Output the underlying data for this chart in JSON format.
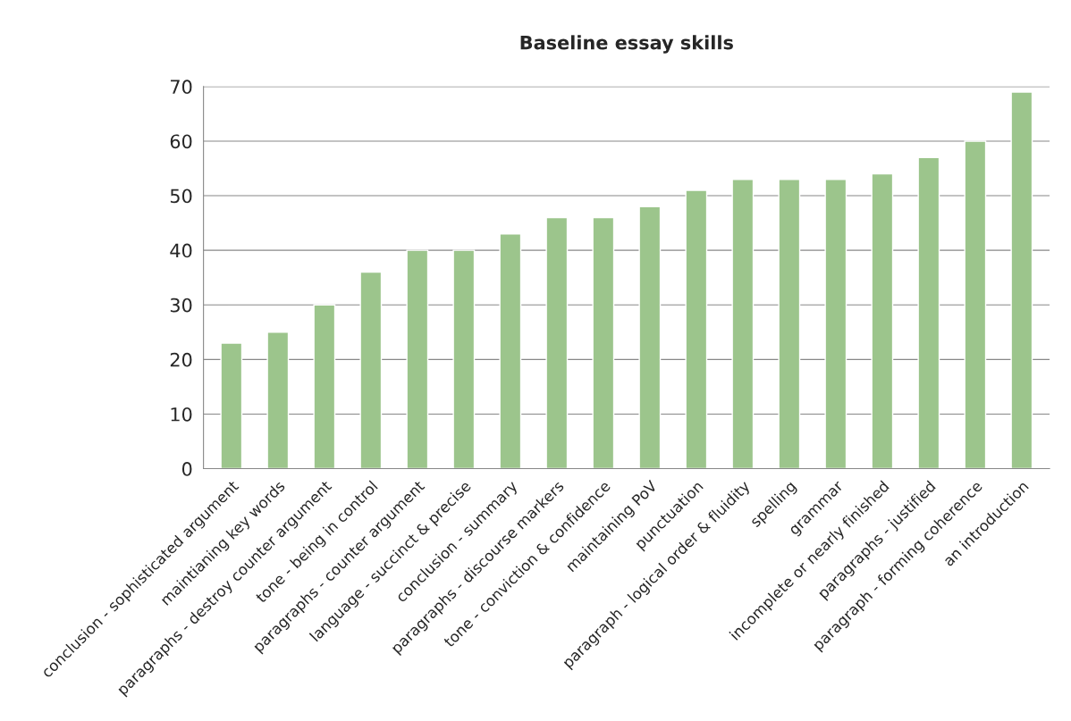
{
  "chart_data": {
    "type": "bar",
    "title": "Baseline essay skills",
    "categories": [
      "conclusion - sophisticated argument",
      "maintianing key words",
      "paragraphs - destroy counter argument",
      "tone - being in control",
      "paragraphs - counter argument",
      "language - succinct & precise",
      "conclusion - summary",
      "paragraphs - discourse markers",
      "tone - conviction & confidence",
      "maintaining PoV",
      "punctuation",
      "paragraph - logical order & fluidity",
      "spelling",
      "grammar",
      "incomplete or nearly finished",
      "paragraphs - justified",
      "paragraph - forming coherence",
      "an introduction"
    ],
    "values": [
      23,
      25,
      30,
      36,
      40,
      40,
      43,
      46,
      46,
      48,
      51,
      53,
      53,
      53,
      54,
      57,
      60,
      69
    ],
    "color": "#9cc58c",
    "ylim": [
      0,
      70
    ],
    "yticks": [
      0,
      10,
      20,
      30,
      40,
      50,
      60,
      70
    ],
    "grid": "y"
  }
}
